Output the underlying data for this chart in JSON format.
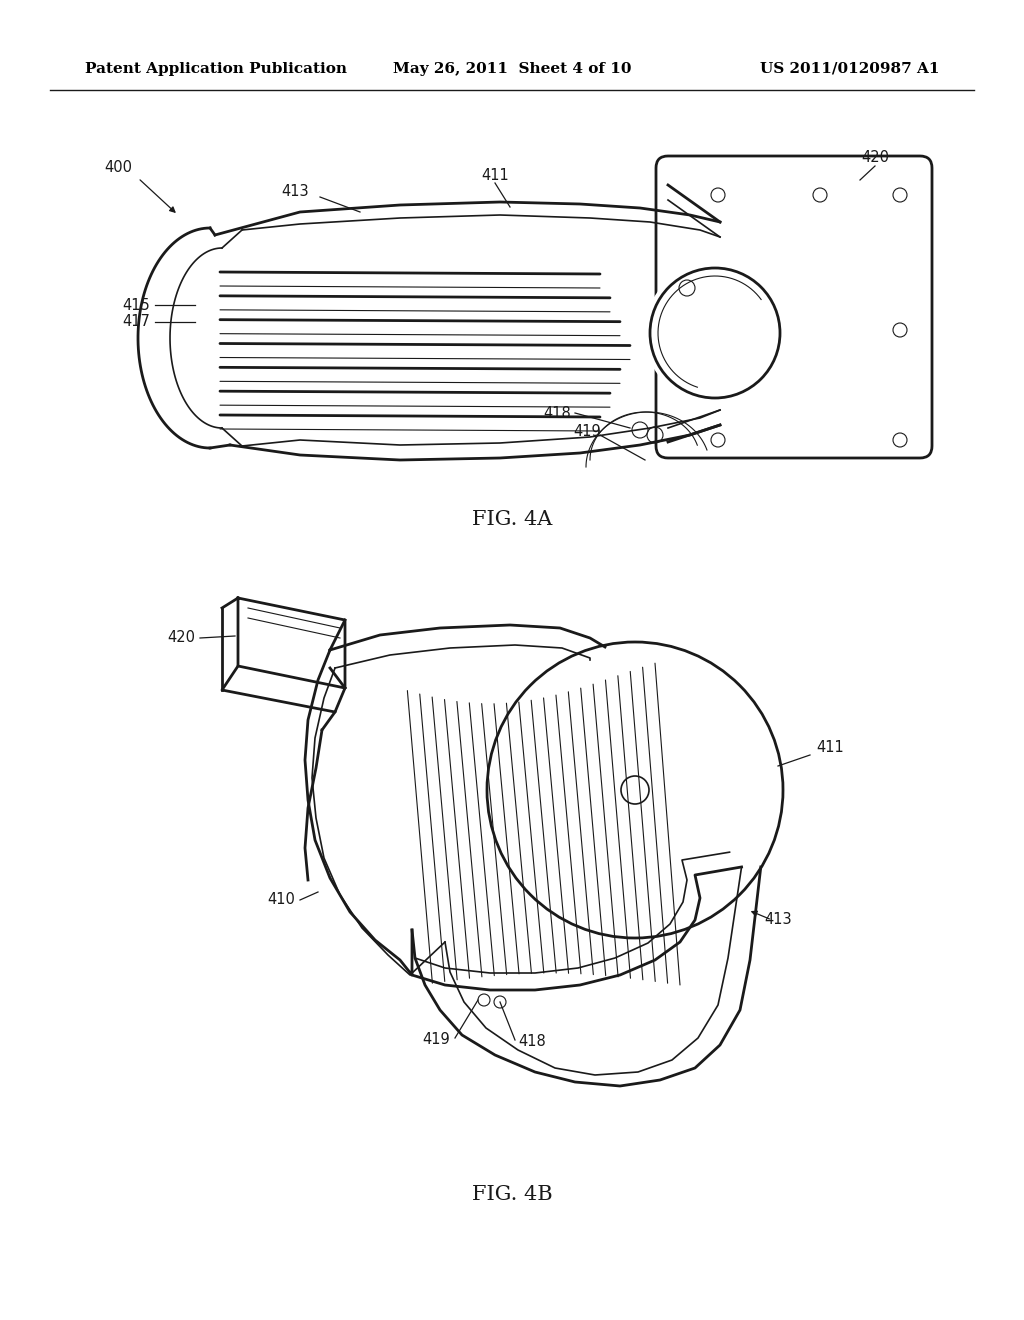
{
  "bg_color": "#ffffff",
  "line_color": "#1a1a1a",
  "header_left": "Patent Application Publication",
  "header_mid": "May 26, 2011  Sheet 4 of 10",
  "header_right": "US 2011/0120987 A1",
  "fig4a_label": "FIG. 4A",
  "fig4b_label": "FIG. 4B"
}
